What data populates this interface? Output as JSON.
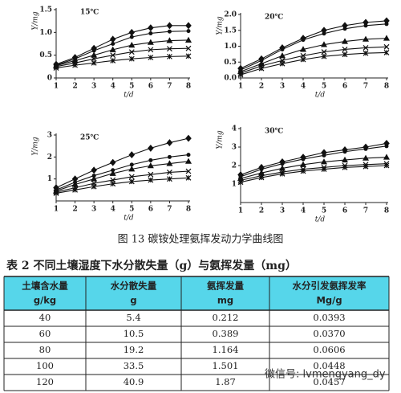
{
  "chart_data": [
    {
      "type": "line",
      "title": "15℃",
      "x_label": "t/d",
      "y_label": "Y/mg",
      "x": [
        1,
        2,
        3,
        4,
        5,
        6,
        7,
        8
      ],
      "xlim": [
        1,
        8
      ],
      "xticks": [
        1,
        2,
        3,
        4,
        5,
        6,
        7,
        8
      ],
      "ylim": [
        0,
        1.5
      ],
      "yticks": [
        0,
        0.5,
        {
          "value": 1,
          "label": "1.0"
        },
        {
          "value": 1.5,
          "label": "1.5"
        }
      ],
      "series": [
        {
          "color": "#111",
          "marker": "diamond",
          "values": [
            0.3,
            0.45,
            0.65,
            0.85,
            1.0,
            1.1,
            1.15,
            1.15
          ]
        },
        {
          "color": "#111",
          "marker": "circle",
          "values": [
            0.28,
            0.42,
            0.6,
            0.75,
            0.9,
            0.98,
            1.02,
            1.03
          ]
        },
        {
          "color": "#111",
          "marker": "triangle",
          "values": [
            0.27,
            0.38,
            0.5,
            0.62,
            0.72,
            0.78,
            0.82,
            0.83
          ]
        },
        {
          "color": "#111",
          "marker": "cross",
          "values": [
            0.25,
            0.33,
            0.42,
            0.5,
            0.57,
            0.62,
            0.64,
            0.65
          ]
        },
        {
          "color": "#111",
          "marker": "star",
          "values": [
            0.22,
            0.28,
            0.33,
            0.38,
            0.42,
            0.45,
            0.47,
            0.48
          ]
        }
      ]
    },
    {
      "type": "line",
      "title": "20℃",
      "x_label": "t/d",
      "y_label": "Y/mg",
      "x": [
        1,
        2,
        3,
        4,
        5,
        6,
        7,
        8
      ],
      "xlim": [
        1,
        8
      ],
      "xticks": [
        1,
        2,
        3,
        4,
        5,
        6,
        7,
        8
      ],
      "ylim": [
        0,
        2
      ],
      "yticks": [
        {
          "value": 0,
          "label": "0.0"
        },
        0.5,
        {
          "value": 1,
          "label": "1.0"
        },
        1.5,
        {
          "value": 2,
          "label": "2.0"
        }
      ],
      "series": [
        {
          "color": "#111",
          "marker": "diamond",
          "values": [
            0.3,
            0.6,
            0.95,
            1.25,
            1.5,
            1.65,
            1.75,
            1.8
          ]
        },
        {
          "color": "#111",
          "marker": "circle",
          "values": [
            0.25,
            0.55,
            0.9,
            1.2,
            1.4,
            1.55,
            1.65,
            1.7
          ]
        },
        {
          "color": "#111",
          "marker": "triangle",
          "values": [
            0.2,
            0.45,
            0.7,
            0.9,
            1.05,
            1.15,
            1.22,
            1.25
          ]
        },
        {
          "color": "#111",
          "marker": "cross",
          "values": [
            0.15,
            0.38,
            0.55,
            0.7,
            0.82,
            0.9,
            0.95,
            0.98
          ]
        },
        {
          "color": "#111",
          "marker": "star",
          "values": [
            0.1,
            0.3,
            0.45,
            0.58,
            0.68,
            0.74,
            0.78,
            0.8
          ]
        }
      ]
    },
    {
      "type": "line",
      "title": "25℃",
      "x_label": "t/d",
      "y_label": "Y/mg",
      "x": [
        1,
        2,
        3,
        4,
        5,
        6,
        7,
        8
      ],
      "xlim": [
        1,
        8
      ],
      "xticks": [
        1,
        2,
        3,
        4,
        5,
        6,
        7,
        8
      ],
      "ylim": [
        0,
        3
      ],
      "yticks": [
        1,
        2,
        3
      ],
      "series": [
        {
          "color": "#111",
          "marker": "diamond",
          "values": [
            0.6,
            1.0,
            1.4,
            1.75,
            2.1,
            2.4,
            2.65,
            2.85
          ]
        },
        {
          "color": "#111",
          "marker": "circle",
          "values": [
            0.5,
            0.85,
            1.15,
            1.4,
            1.65,
            1.85,
            2.0,
            2.1
          ]
        },
        {
          "color": "#111",
          "marker": "triangle",
          "values": [
            0.45,
            0.75,
            1.0,
            1.25,
            1.45,
            1.6,
            1.7,
            1.8
          ]
        },
        {
          "color": "#111",
          "marker": "cross",
          "values": [
            0.4,
            0.6,
            0.8,
            0.95,
            1.1,
            1.2,
            1.3,
            1.35
          ]
        },
        {
          "color": "#111",
          "marker": "star",
          "values": [
            0.35,
            0.5,
            0.65,
            0.78,
            0.88,
            0.95,
            1.0,
            1.05
          ]
        }
      ]
    },
    {
      "type": "line",
      "title": "30℃",
      "x_label": "t/d",
      "y_label": "Y/mg",
      "x": [
        1,
        2,
        3,
        4,
        5,
        6,
        7,
        8
      ],
      "xlim": [
        1,
        8
      ],
      "xticks": [
        1,
        2,
        3,
        4,
        5,
        6,
        7,
        8
      ],
      "ylim": [
        0,
        4
      ],
      "yticks": [
        1,
        2,
        3,
        4
      ],
      "series": [
        {
          "color": "#111",
          "marker": "diamond",
          "values": [
            1.5,
            1.9,
            2.2,
            2.45,
            2.7,
            2.85,
            3.0,
            3.2
          ]
        },
        {
          "color": "#111",
          "marker": "circle",
          "values": [
            1.4,
            1.8,
            2.1,
            2.35,
            2.55,
            2.75,
            2.9,
            3.05
          ]
        },
        {
          "color": "#111",
          "marker": "triangle",
          "values": [
            1.3,
            1.6,
            1.85,
            2.05,
            2.2,
            2.3,
            2.4,
            2.45
          ]
        },
        {
          "color": "#111",
          "marker": "cross",
          "values": [
            1.2,
            1.45,
            1.65,
            1.8,
            1.9,
            2.0,
            2.05,
            2.1
          ]
        },
        {
          "color": "#111",
          "marker": "star",
          "values": [
            1.1,
            1.35,
            1.55,
            1.7,
            1.8,
            1.9,
            1.95,
            2.0
          ]
        }
      ]
    }
  ],
  "figure_caption": "图 13   碳铵处理氨挥发动力学曲线图",
  "table": {
    "title": "表 2   不同土壤湿度下水分散失量（g）与氨挥发量（mg）",
    "header": [
      [
        "土壤含水量",
        "g/kg"
      ],
      [
        "水分散失量",
        "g"
      ],
      [
        "氨挥发量",
        "mg"
      ],
      [
        "水分引发氨挥发率",
        "Mg/g"
      ]
    ],
    "rows": [
      [
        "40",
        "5.4",
        "0.212",
        "0.0393"
      ],
      [
        "60",
        "10.5",
        "0.389",
        "0.0370"
      ],
      [
        "80",
        "19.2",
        "1.164",
        "0.0606"
      ],
      [
        "100",
        "33.5",
        "1.501",
        "0.0448"
      ],
      [
        "120",
        "40.9",
        "1.87",
        "0.0457"
      ]
    ]
  },
  "watermark": "微信号: lvmengyang_dy"
}
